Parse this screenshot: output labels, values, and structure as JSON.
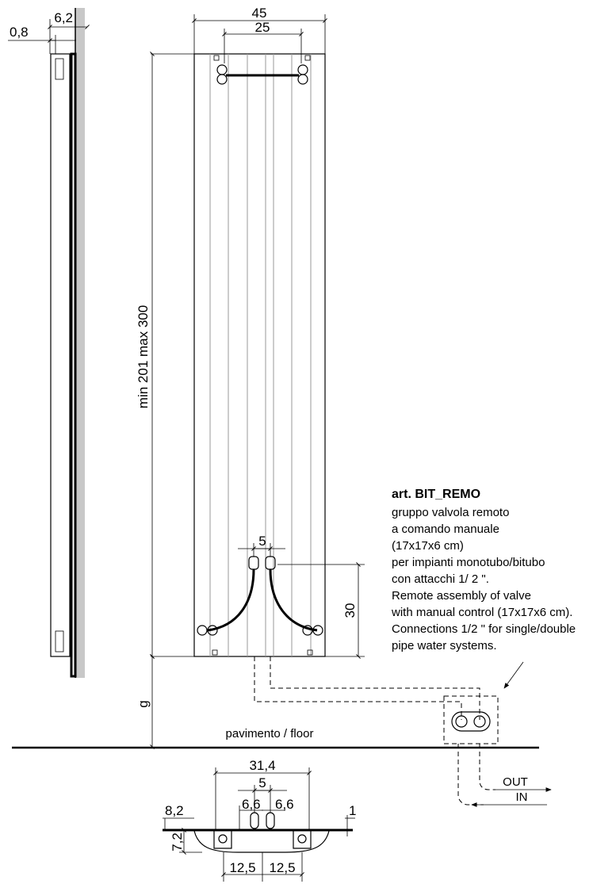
{
  "dimensions": {
    "side_thickness": "6,2",
    "side_gap": "0,8",
    "width_total": "45",
    "width_holes": "25",
    "height": "min 201  max 300",
    "valve_spacing": "5",
    "valve_height": "30",
    "floor_gap": "g",
    "plan_width": "31,4",
    "plan_spacing": "5",
    "plan_left_offset": "6,6",
    "plan_right_offset": "6,6",
    "plan_depth": "8,2",
    "plan_bracket": "7,2",
    "plan_panel": "1",
    "plan_left_half": "12,5",
    "plan_right_half": "12,5"
  },
  "labels": {
    "floor": "pavimento / floor",
    "out": "OUT",
    "in": "IN"
  },
  "note": {
    "title": "art. BIT_REMO",
    "lines": [
      "gruppo valvola remoto",
      "a comando manuale",
      "(17x17x6 cm)",
      "per impianti monotubo/bitubo",
      "con attacchi 1/ 2 \".",
      "Remote assembly of valve",
      "with manual control (17x17x6 cm).",
      "Connections 1/2 \" for single/double",
      "pipe water systems."
    ]
  }
}
